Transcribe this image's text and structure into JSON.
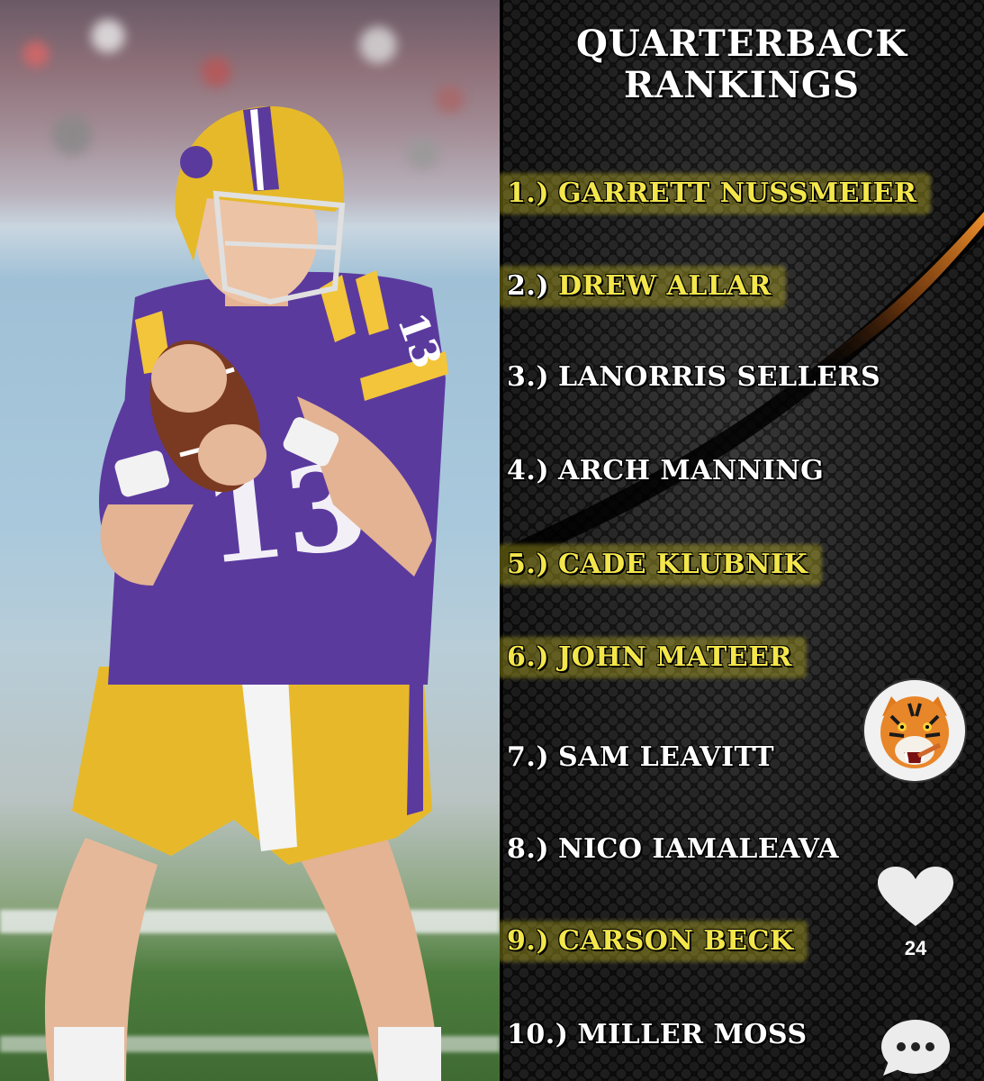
{
  "panel": {
    "title_line1": "QUARTERBACK",
    "title_line2": "RANKINGS",
    "accent_color": "#f3e64a"
  },
  "rankings": [
    {
      "num": "1.)",
      "name": "GARRETT NUSSMEIER",
      "highlight": true
    },
    {
      "num": "2.)",
      "name": "DREW ALLAR",
      "highlight": true
    },
    {
      "num": "3.)",
      "name": "LANORRIS SELLERS",
      "highlight": false
    },
    {
      "num": "4.)",
      "name": "ARCH MANNING",
      "highlight": false
    },
    {
      "num": "5.)",
      "name": "CADE KLUBNIK",
      "highlight": true
    },
    {
      "num": "6.)",
      "name": "JOHN MATEER",
      "highlight": true
    },
    {
      "num": "7.)",
      "name": "SAM LEAVITT",
      "highlight": false
    },
    {
      "num": "8.)",
      "name": "NICO IAMALEAVA",
      "highlight": false
    },
    {
      "num": "9.)",
      "name": "CARSON BECK",
      "highlight": true
    },
    {
      "num": "10.)",
      "name": "MILLER MOSS",
      "highlight": false
    }
  ],
  "social": {
    "like_count": "24",
    "profile_icon": "tiger-avatar-icon",
    "like_icon": "heart-icon",
    "comment_icon": "comment-bubble-icon"
  },
  "photo": {
    "jersey_number": "13",
    "jersey_color": "#5b3a9e",
    "pants_color": "#e7b92a"
  }
}
